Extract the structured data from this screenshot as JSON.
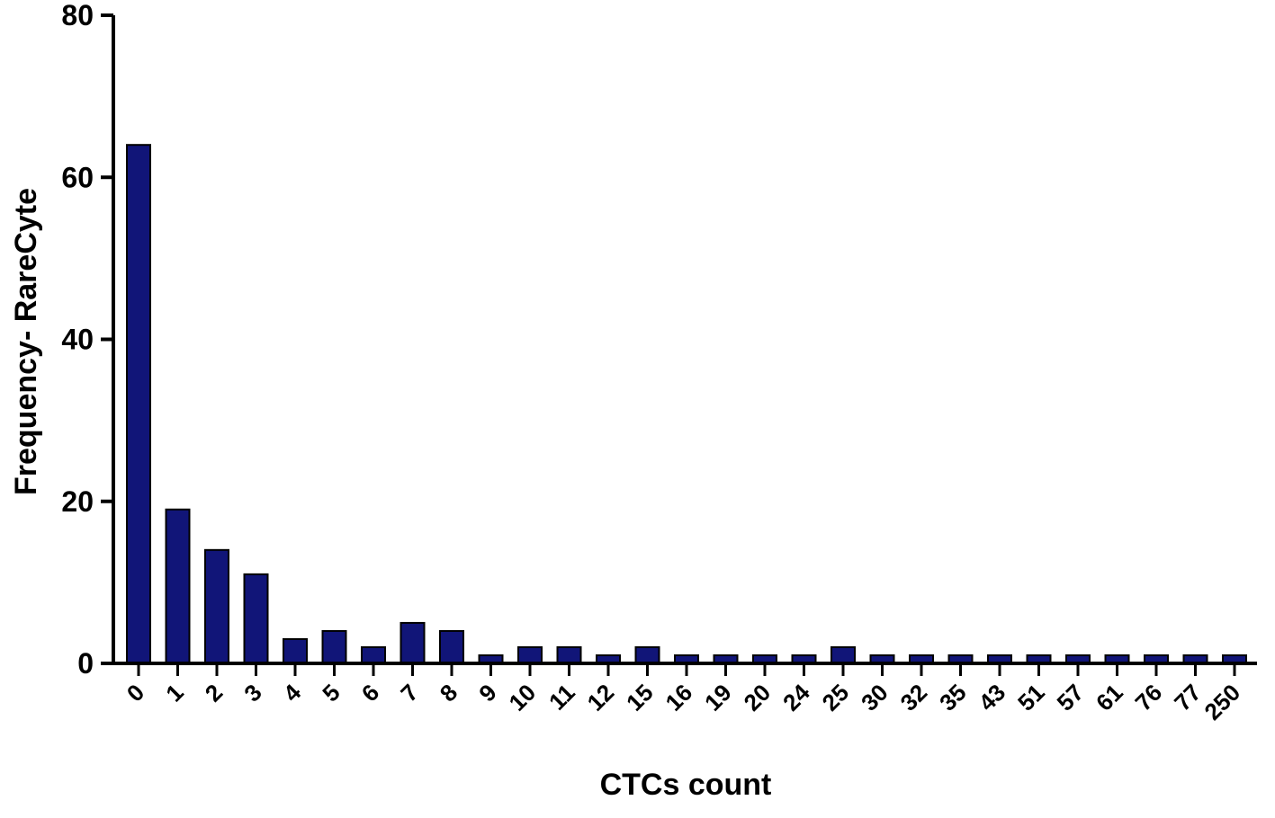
{
  "chart_data": {
    "type": "bar",
    "title": "",
    "xlabel": "CTCs count",
    "ylabel": "Frequency- RareCyte",
    "categories": [
      "0",
      "1",
      "2",
      "3",
      "4",
      "5",
      "6",
      "7",
      "8",
      "9",
      "10",
      "11",
      "12",
      "15",
      "16",
      "19",
      "20",
      "24",
      "25",
      "30",
      "32",
      "35",
      "43",
      "51",
      "57",
      "61",
      "76",
      "77",
      "250"
    ],
    "values": [
      64,
      19,
      14,
      11,
      3,
      4,
      2,
      5,
      4,
      1,
      2,
      2,
      1,
      2,
      1,
      1,
      1,
      1,
      2,
      1,
      1,
      1,
      1,
      1,
      1,
      1,
      1,
      1,
      1
    ],
    "ylim": [
      0,
      80
    ],
    "yticks": [
      0,
      20,
      40,
      60,
      80
    ],
    "grid": false,
    "legend": "none",
    "bar_color": "#111578"
  }
}
